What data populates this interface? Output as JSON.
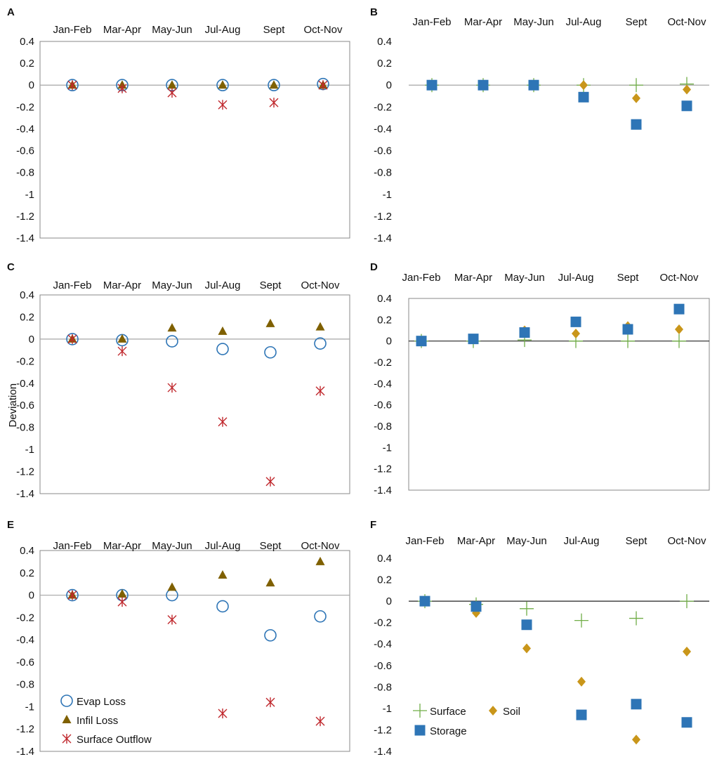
{
  "colors": {
    "evap": "#2e75b6",
    "infil": "#7f6000",
    "surface_outflow": "#c0282d",
    "surface": "#70ad47",
    "soil": "#c9961a",
    "storage": "#2e75b6"
  },
  "chart_data": [
    {
      "panel": "A",
      "type": "scatter",
      "categories": [
        "Jan-Feb",
        "Mar-Apr",
        "May-Jun",
        "Jul-Aug",
        "Sept",
        "Oct-Nov"
      ],
      "ylim": [
        -1.4,
        0.4
      ],
      "yticks": [
        "0.4",
        "0.2",
        "0",
        "-0.2",
        "-0.4",
        "-0.6",
        "-0.8",
        "-1",
        "-1.2",
        "-1.4"
      ],
      "ylabel": "",
      "series": [
        {
          "name": "Evap Loss",
          "marker": "circle",
          "values": [
            0.0,
            0.0,
            0.0,
            0.0,
            0.0,
            0.01
          ]
        },
        {
          "name": "Infil Loss",
          "marker": "triangle",
          "values": [
            0.0,
            0.0,
            0.0,
            0.0,
            0.0,
            0.0
          ]
        },
        {
          "name": "Surface Outflow",
          "marker": "asterisk",
          "values": [
            0.0,
            -0.03,
            -0.07,
            -0.18,
            -0.16,
            0.0
          ]
        }
      ]
    },
    {
      "panel": "B",
      "type": "scatter",
      "categories": [
        "Jan-Feb",
        "Mar-Apr",
        "May-Jun",
        "Jul-Aug",
        "Sept",
        "Oct-Nov"
      ],
      "ylim": [
        -1.4,
        0.4
      ],
      "yticks": [
        "0.4",
        "0.2",
        "0",
        "-0.2",
        "-0.4",
        "-0.6",
        "-0.8",
        "-1",
        "-1.2",
        "-1.4"
      ],
      "ylabel": "",
      "series": [
        {
          "name": "Surface",
          "marker": "plus",
          "values": [
            0.0,
            0.0,
            0.0,
            0.0,
            0.0,
            0.01
          ]
        },
        {
          "name": "Soil",
          "marker": "diamond",
          "values": [
            0.0,
            0.0,
            0.0,
            0.0,
            -0.12,
            -0.04
          ]
        },
        {
          "name": "Storage",
          "marker": "square",
          "values": [
            0.0,
            0.0,
            0.0,
            -0.11,
            -0.36,
            -0.19
          ]
        }
      ]
    },
    {
      "panel": "C",
      "type": "scatter",
      "categories": [
        "Jan-Feb",
        "Mar-Apr",
        "May-Jun",
        "Jul-Aug",
        "Sept",
        "Oct-Nov"
      ],
      "ylim": [
        -1.4,
        0.4
      ],
      "yticks": [
        "0.4",
        "0.2",
        "0",
        "-0.2",
        "-0.4",
        "-0.6",
        "-0.8",
        "-1",
        "-1.2",
        "-1.4"
      ],
      "ylabel": "Deviation",
      "series": [
        {
          "name": "Evap Loss",
          "marker": "circle",
          "values": [
            0.0,
            -0.01,
            -0.02,
            -0.09,
            -0.12,
            -0.04
          ]
        },
        {
          "name": "Infil Loss",
          "marker": "triangle",
          "values": [
            0.0,
            0.0,
            0.1,
            0.07,
            0.14,
            0.11
          ]
        },
        {
          "name": "Surface Outflow",
          "marker": "asterisk",
          "values": [
            0.0,
            -0.11,
            -0.44,
            -0.75,
            -1.29,
            -0.47
          ]
        }
      ]
    },
    {
      "panel": "D",
      "type": "scatter",
      "categories": [
        "Jan-Feb",
        "Mar-Apr",
        "May-Jun",
        "Jul-Aug",
        "Sept",
        "Oct-Nov"
      ],
      "ylim": [
        -1.4,
        0.4
      ],
      "yticks": [
        "0.4",
        "0.2",
        "0",
        "-0.2",
        "-0.4",
        "-0.6",
        "-0.8",
        "-1",
        "-1.2",
        "-1.4"
      ],
      "ylabel": "",
      "series": [
        {
          "name": "Surface",
          "marker": "plus",
          "values": [
            0.0,
            0.0,
            0.01,
            0.0,
            0.0,
            0.0
          ]
        },
        {
          "name": "Soil",
          "marker": "diamond",
          "values": [
            0.0,
            0.02,
            0.1,
            0.07,
            0.14,
            0.11
          ]
        },
        {
          "name": "Storage",
          "marker": "square",
          "values": [
            0.0,
            0.02,
            0.08,
            0.18,
            0.11,
            0.3
          ]
        }
      ]
    },
    {
      "panel": "E",
      "type": "scatter",
      "categories": [
        "Jan-Feb",
        "Mar-Apr",
        "May-Jun",
        "Jul-Aug",
        "Sept",
        "Oct-Nov"
      ],
      "ylim": [
        -1.4,
        0.4
      ],
      "yticks": [
        "0.4",
        "0.2",
        "0",
        "-0.2",
        "-0.4",
        "-0.6",
        "-0.8",
        "-1",
        "-1.2",
        "-1.4"
      ],
      "ylabel": "",
      "legend": "bottom-left",
      "series": [
        {
          "name": "Evap Loss",
          "marker": "circle",
          "values": [
            0.0,
            0.0,
            0.0,
            -0.1,
            -0.36,
            -0.19
          ]
        },
        {
          "name": "Infil Loss",
          "marker": "triangle",
          "values": [
            0.0,
            0.01,
            0.07,
            0.18,
            0.11,
            0.3
          ]
        },
        {
          "name": "Surface Outflow",
          "marker": "asterisk",
          "values": [
            0.0,
            -0.06,
            -0.22,
            -1.06,
            -0.96,
            -1.13
          ]
        }
      ]
    },
    {
      "panel": "F",
      "type": "scatter",
      "categories": [
        "Jan-Feb",
        "Mar-Apr",
        "May-Jun",
        "Jul-Aug",
        "Sept",
        "Oct-Nov"
      ],
      "ylim": [
        -1.4,
        0.4
      ],
      "yticks": [
        "0.4",
        "0.2",
        "0",
        "-0.2",
        "-0.4",
        "-0.6",
        "-0.8",
        "-1",
        "-1.2",
        "-1.4"
      ],
      "ylabel": "",
      "legend": "bottom-left",
      "series": [
        {
          "name": "Surface",
          "marker": "plus",
          "values": [
            0.0,
            -0.03,
            -0.07,
            -0.18,
            -0.16,
            0.0
          ]
        },
        {
          "name": "Soil",
          "marker": "diamond",
          "values": [
            0.0,
            -0.11,
            -0.44,
            -0.75,
            -1.29,
            -0.47
          ]
        },
        {
          "name": "Storage",
          "marker": "square",
          "values": [
            0.0,
            -0.05,
            -0.22,
            -1.06,
            -0.96,
            -1.13
          ]
        }
      ]
    }
  ]
}
